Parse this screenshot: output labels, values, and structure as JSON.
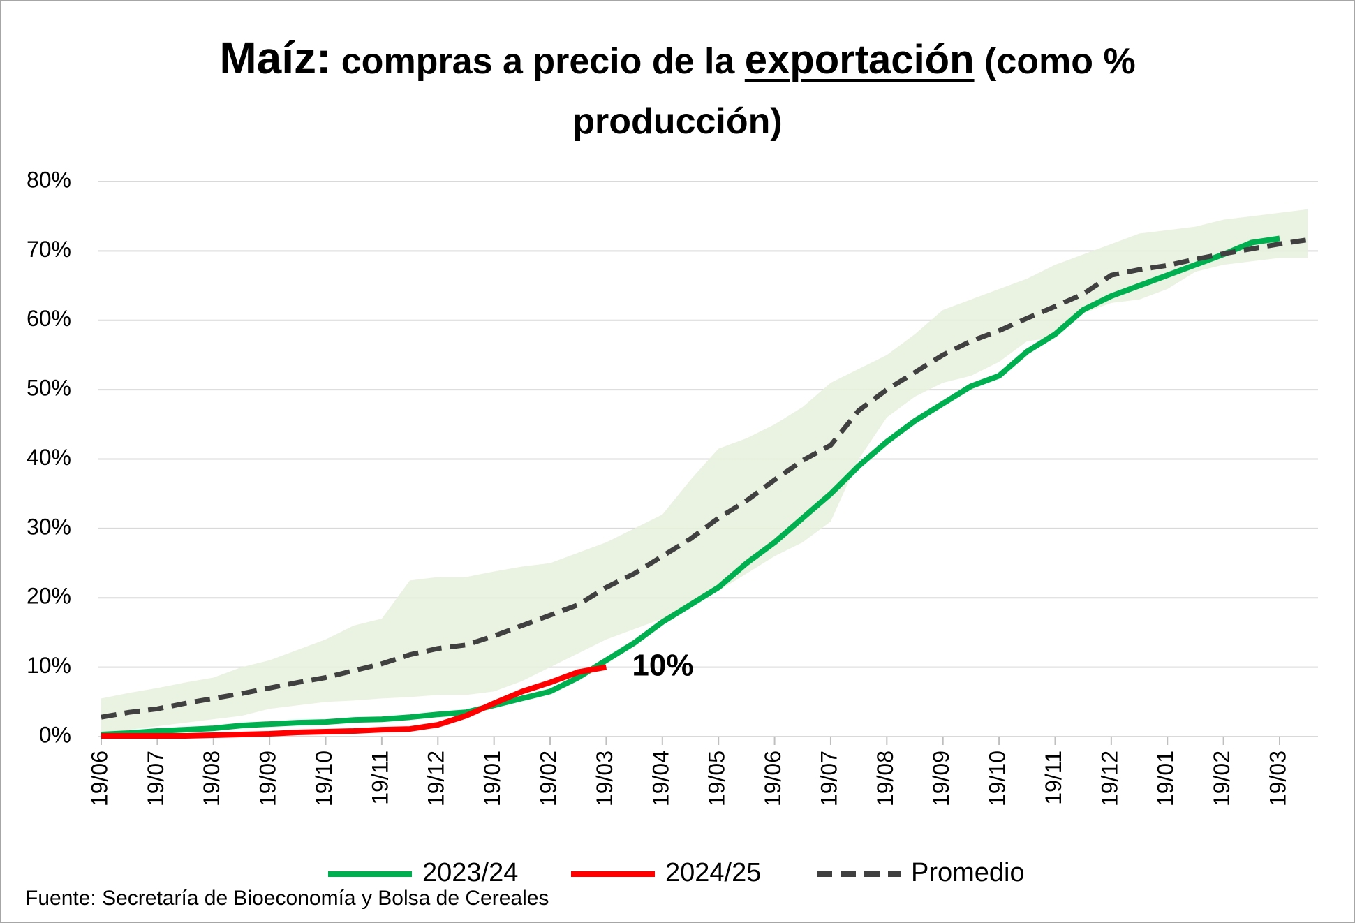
{
  "chart_data": {
    "type": "line",
    "title": {
      "lead": "Maíz:",
      "text": "compras a precio de la",
      "emphasis": "exportación",
      "tail": "(como %",
      "line2": "producción)"
    },
    "categories": [
      "19/06",
      null,
      "19/07",
      null,
      "19/08",
      null,
      "19/09",
      null,
      "19/10",
      null,
      "19/11",
      null,
      "19/12",
      null,
      "19/01",
      null,
      "19/02",
      null,
      "19/03",
      null,
      "19/04",
      null,
      "19/05",
      null,
      "19/06",
      null,
      "19/07",
      null,
      "19/08",
      null,
      "19/09",
      null,
      "19/10",
      null,
      "19/11",
      null,
      "19/12",
      null,
      "19/01",
      null,
      "19/02",
      null,
      "19/03",
      null
    ],
    "ylim": [
      0,
      80
    ],
    "yticks": [
      {
        "value": 0,
        "label": "0%"
      },
      {
        "value": 10,
        "label": "10%"
      },
      {
        "value": 20,
        "label": "20%"
      },
      {
        "value": 30,
        "label": "30%"
      },
      {
        "value": 40,
        "label": "40%"
      },
      {
        "value": 50,
        "label": "50%"
      },
      {
        "value": 60,
        "label": "60%"
      },
      {
        "value": 70,
        "label": "70%"
      },
      {
        "value": 80,
        "label": "80%"
      }
    ],
    "grid": true,
    "range": {
      "color": "#e6f0dc",
      "upper": [
        5.5,
        6.3,
        7,
        7.8,
        8.5,
        10,
        11,
        12.5,
        14,
        16,
        17,
        22.5,
        23,
        23,
        23.8,
        24.5,
        25,
        26.5,
        28,
        30,
        32,
        37,
        41.5,
        43,
        45,
        47.5,
        51,
        53,
        55,
        58,
        61.5,
        63,
        64.5,
        66,
        68,
        69.5,
        71,
        72.5,
        73,
        73.5,
        74.5,
        75,
        75.5,
        76
      ],
      "lower": [
        0.3,
        1,
        1.5,
        2,
        2.5,
        3,
        4,
        4.5,
        5,
        5.2,
        5.5,
        5.7,
        6,
        6,
        6.5,
        8,
        10,
        12,
        14,
        15.5,
        17,
        19,
        21,
        23.5,
        26,
        28,
        31,
        40,
        46,
        49,
        51,
        52,
        54,
        57,
        57.5,
        61,
        62.5,
        63,
        64.5,
        67,
        68,
        68.5,
        69,
        69
      ]
    },
    "series": [
      {
        "name": "2023/24",
        "color": "#00b050",
        "dashed": false,
        "values": [
          0.3,
          0.5,
          0.8,
          1,
          1.2,
          1.6,
          1.8,
          2,
          2.1,
          2.4,
          2.5,
          2.8,
          3.2,
          3.5,
          4.5,
          5.5,
          6.5,
          8.5,
          11,
          13.5,
          16.5,
          19,
          21.5,
          25,
          28,
          31.5,
          35,
          39,
          42.5,
          45.5,
          48,
          50.5,
          52,
          55.5,
          58,
          61.5,
          63.5,
          65,
          66.5,
          68,
          69.5,
          71.2,
          71.8,
          null
        ]
      },
      {
        "name": "2024/25",
        "color": "#ff0000",
        "dashed": false,
        "values": [
          0.1,
          0.1,
          0.1,
          0.1,
          0.2,
          0.3,
          0.4,
          0.6,
          0.7,
          0.8,
          1,
          1.1,
          1.7,
          3,
          4.8,
          6.5,
          7.8,
          9.3,
          10,
          null,
          null,
          null,
          null,
          null,
          null,
          null,
          null,
          null,
          null,
          null,
          null,
          null,
          null,
          null,
          null,
          null,
          null,
          null,
          null,
          null,
          null,
          null,
          null,
          null
        ]
      },
      {
        "name": "Promedio",
        "color": "#404040",
        "dashed": true,
        "values": [
          2.8,
          3.5,
          4,
          4.8,
          5.5,
          6.2,
          7,
          7.8,
          8.5,
          9.5,
          10.5,
          11.8,
          12.7,
          13.2,
          14.5,
          16,
          17.5,
          19,
          21.5,
          23.5,
          26,
          28.5,
          31.5,
          34,
          37,
          39.8,
          42,
          47,
          50,
          52.5,
          55,
          57,
          58.5,
          60.3,
          62,
          63.8,
          66.5,
          67.3,
          67.9,
          68.8,
          69.6,
          70.3,
          71,
          71.6
        ]
      }
    ],
    "annotation": {
      "text": "10%"
    },
    "source": "Fuente: Secretaría de Bioeconomía y Bolsa de Cereales"
  }
}
